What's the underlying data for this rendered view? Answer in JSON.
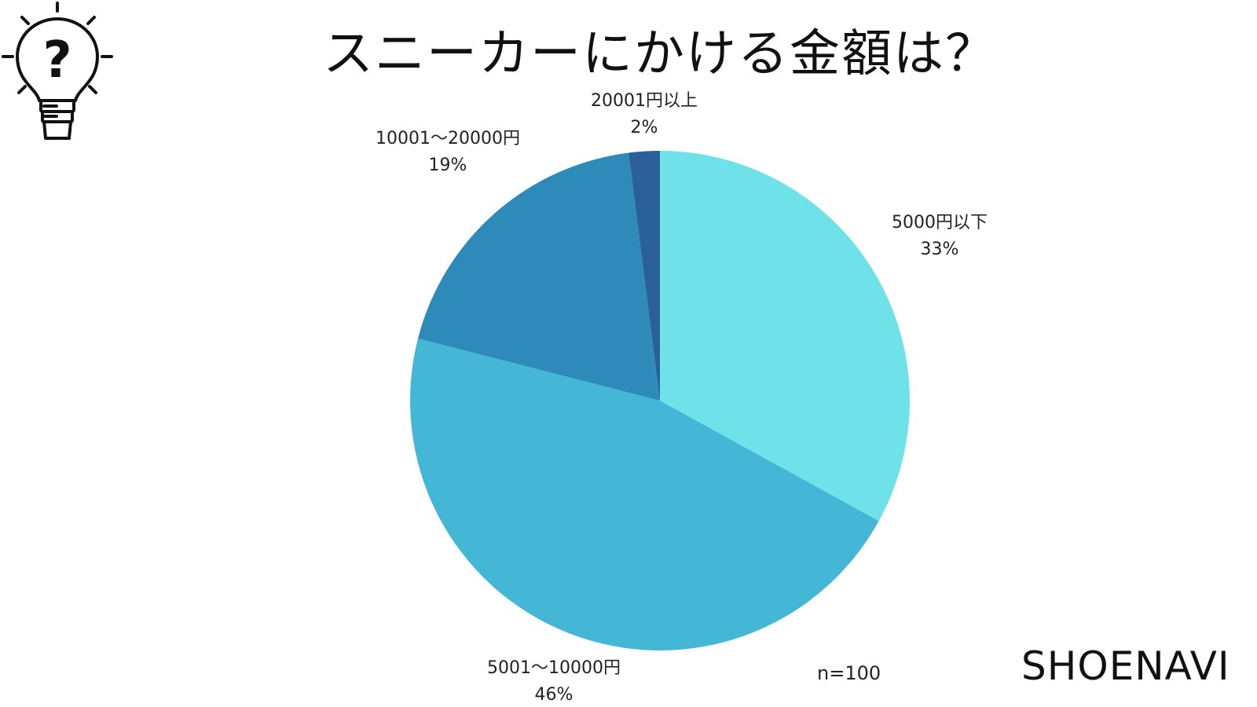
{
  "header": {
    "title": "スニーカーにかける金額は？",
    "icon": "lightbulb-question-icon"
  },
  "chart_data": {
    "type": "pie",
    "title": "スニーカーにかける金額は？",
    "categories": [
      "5000円以下",
      "5001〜10000円",
      "10001〜20000円",
      "20001円以上"
    ],
    "values": [
      33,
      46,
      19,
      2
    ],
    "value_labels": [
      "33%",
      "46%",
      "19%",
      "2%"
    ],
    "colors": [
      "#6EE2E8",
      "#45B7D6",
      "#2E8AB8",
      "#2A5F98"
    ],
    "start": "12 o'clock",
    "direction": "clockwise"
  },
  "footer": {
    "sample_size": "n=100",
    "brand": "SHOENAVI"
  }
}
